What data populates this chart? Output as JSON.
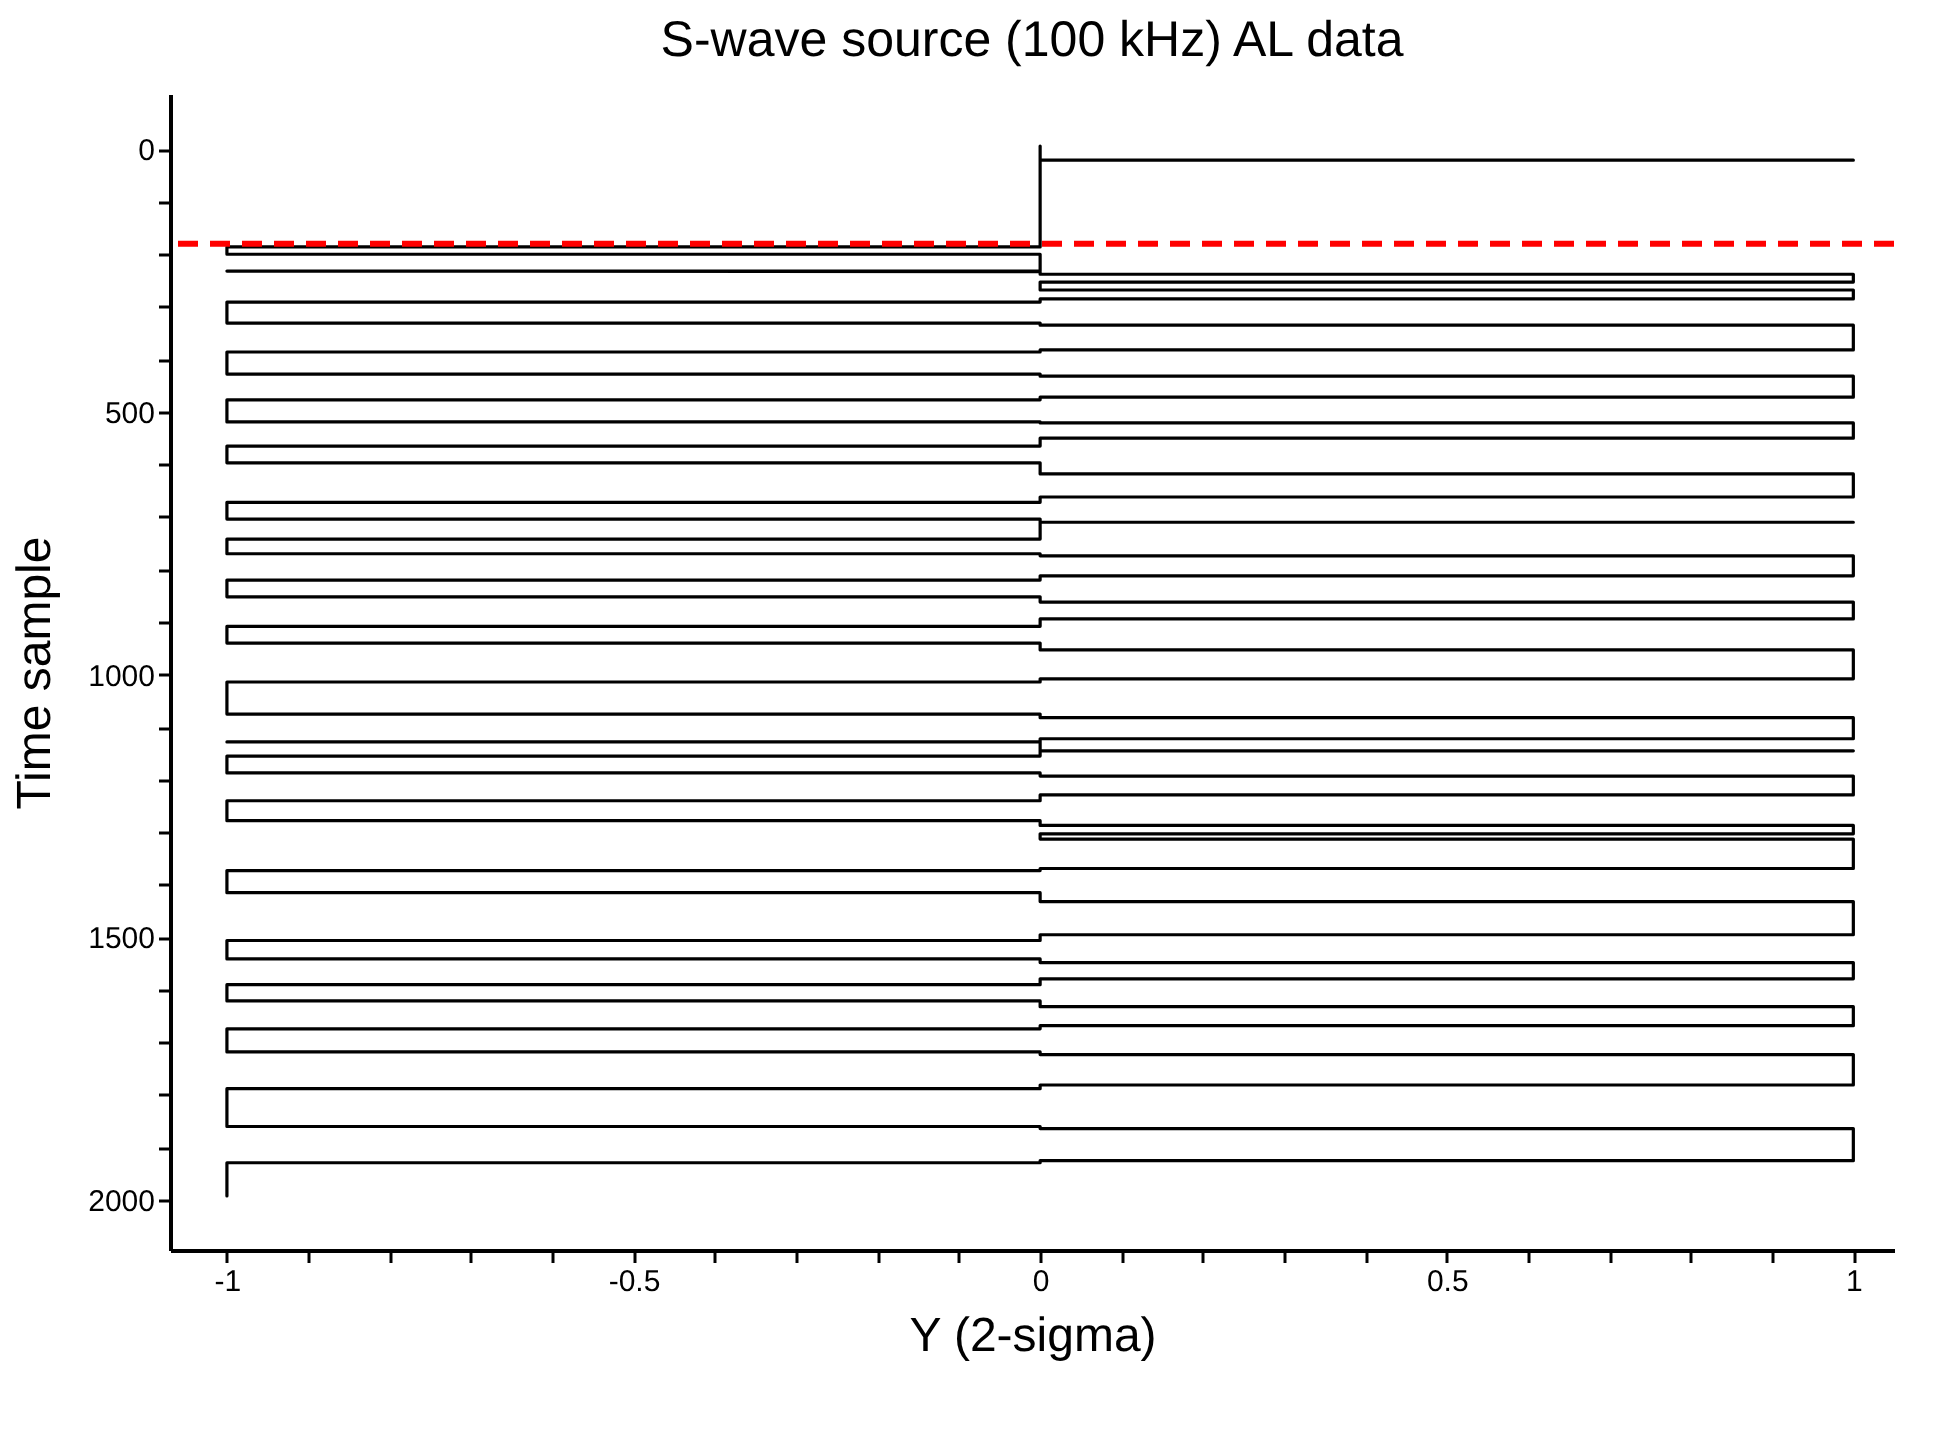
{
  "chart_data": {
    "type": "line",
    "title": "S-wave source (100 kHz) AL data",
    "xlabel": "Y (2-sigma)",
    "ylabel": "Time sample",
    "xlim": [
      -1.07,
      1.05
    ],
    "xticks": [
      -1,
      {
        "value": -0.9,
        "label": null
      },
      {
        "value": -0.8,
        "label": null
      },
      {
        "value": -0.7,
        "label": null
      },
      {
        "value": -0.6,
        "label": null
      },
      -0.5,
      {
        "value": -0.4,
        "label": null
      },
      {
        "value": -0.3,
        "label": null
      },
      {
        "value": -0.2,
        "label": null
      },
      {
        "value": -0.1,
        "label": null
      },
      0,
      {
        "value": 0.1,
        "label": null
      },
      {
        "value": 0.2,
        "label": null
      },
      {
        "value": 0.3,
        "label": null
      },
      {
        "value": 0.4,
        "label": null
      },
      0.5,
      {
        "value": 0.6,
        "label": null
      },
      {
        "value": 0.7,
        "label": null
      },
      {
        "value": 0.8,
        "label": null
      },
      {
        "value": 0.9,
        "label": null
      },
      1
    ],
    "ylim": [
      2095,
      -105
    ],
    "yticks": [
      0,
      {
        "value": 100,
        "label": null
      },
      {
        "value": 200,
        "label": null
      },
      {
        "value": 300,
        "label": null
      },
      {
        "value": 400,
        "label": null
      },
      500,
      {
        "value": 600,
        "label": null
      },
      {
        "value": 700,
        "label": null
      },
      {
        "value": 800,
        "label": null
      },
      {
        "value": 900,
        "label": null
      },
      1000,
      {
        "value": 1100,
        "label": null
      },
      {
        "value": 1200,
        "label": null
      },
      {
        "value": 1300,
        "label": null
      },
      {
        "value": 1400,
        "label": null
      },
      1500,
      {
        "value": 1600,
        "label": null
      },
      {
        "value": 1700,
        "label": null
      },
      {
        "value": 1800,
        "label": null
      },
      {
        "value": 1900,
        "label": null
      },
      2000
    ],
    "grid": false,
    "legend": false,
    "marker": "none",
    "line_style": "solid",
    "ref_lines": [
      {
        "axis": "y",
        "value": 180,
        "color": "#ff0000",
        "line_style": "dashed"
      }
    ],
    "series": [
      {
        "color": "#000000",
        "x": [
          0,
          0,
          1,
          0,
          0,
          -1,
          -1,
          0,
          0,
          -1,
          0,
          0,
          1,
          1,
          0,
          0,
          1,
          1,
          0,
          0,
          -1,
          -1,
          0,
          0,
          1,
          1,
          0,
          0,
          -1,
          -1,
          0,
          0,
          1,
          1,
          0,
          0,
          -1,
          -1,
          0,
          0,
          1,
          1,
          0,
          0,
          -1,
          -1,
          0,
          0,
          1,
          1,
          0,
          0,
          -1,
          -1,
          0,
          0,
          1,
          0,
          0,
          -1,
          -1,
          0,
          0,
          1,
          1,
          0,
          0,
          -1,
          -1,
          0,
          0,
          1,
          1,
          0,
          0,
          -1,
          -1,
          0,
          0,
          1,
          1,
          0,
          0,
          -1,
          -1,
          0,
          0,
          1,
          1,
          0,
          0,
          -1,
          0,
          0,
          1,
          0,
          0,
          -1,
          -1,
          0,
          0,
          1,
          1,
          0,
          0,
          -1,
          -1,
          0,
          0,
          1,
          1,
          0,
          0,
          1,
          1,
          0,
          0,
          -1,
          -1,
          0,
          0,
          1,
          1,
          0,
          0,
          -1,
          -1,
          0,
          0,
          1,
          1,
          0,
          0,
          -1,
          -1,
          0,
          0,
          1,
          1,
          0,
          0,
          -1,
          -1,
          0,
          0,
          1,
          1,
          0,
          0,
          -1,
          -1,
          0,
          0,
          1,
          1,
          0,
          0,
          -1,
          -1
        ],
        "values": [
          -6,
          21,
          21,
          21,
          186,
          186,
          200,
          200,
          232,
          232,
          233,
          238,
          238,
          253,
          253,
          268,
          268,
          285,
          285,
          291,
          291,
          331,
          331,
          335,
          335,
          382,
          382,
          386,
          386,
          428,
          428,
          432,
          432,
          472,
          472,
          477,
          477,
          519,
          519,
          521,
          521,
          550,
          550,
          565,
          565,
          597,
          597,
          618,
          618,
          662,
          662,
          672,
          672,
          704,
          704,
          710,
          710,
          710,
          742,
          742,
          770,
          770,
          774,
          774,
          812,
          812,
          820,
          820,
          852,
          852,
          862,
          862,
          894,
          894,
          908,
          908,
          940,
          940,
          953,
          953,
          1008,
          1008,
          1014,
          1014,
          1075,
          1075,
          1082,
          1082,
          1122,
          1122,
          1128,
          1128,
          1128,
          1145,
          1145,
          1145,
          1155,
          1155,
          1187,
          1187,
          1193,
          1193,
          1229,
          1229,
          1240,
          1240,
          1278,
          1278,
          1287,
          1287,
          1303,
          1303,
          1313,
          1313,
          1369,
          1369,
          1373,
          1373,
          1415,
          1415,
          1432,
          1432,
          1495,
          1495,
          1506,
          1506,
          1541,
          1541,
          1548,
          1548,
          1579,
          1579,
          1590,
          1590,
          1621,
          1621,
          1632,
          1632,
          1668,
          1668,
          1674,
          1674,
          1718,
          1718,
          1723,
          1723,
          1781,
          1781,
          1788,
          1788,
          1860,
          1860,
          1864,
          1864,
          1925,
          1925,
          1929,
          1929,
          1992
        ]
      }
    ]
  }
}
